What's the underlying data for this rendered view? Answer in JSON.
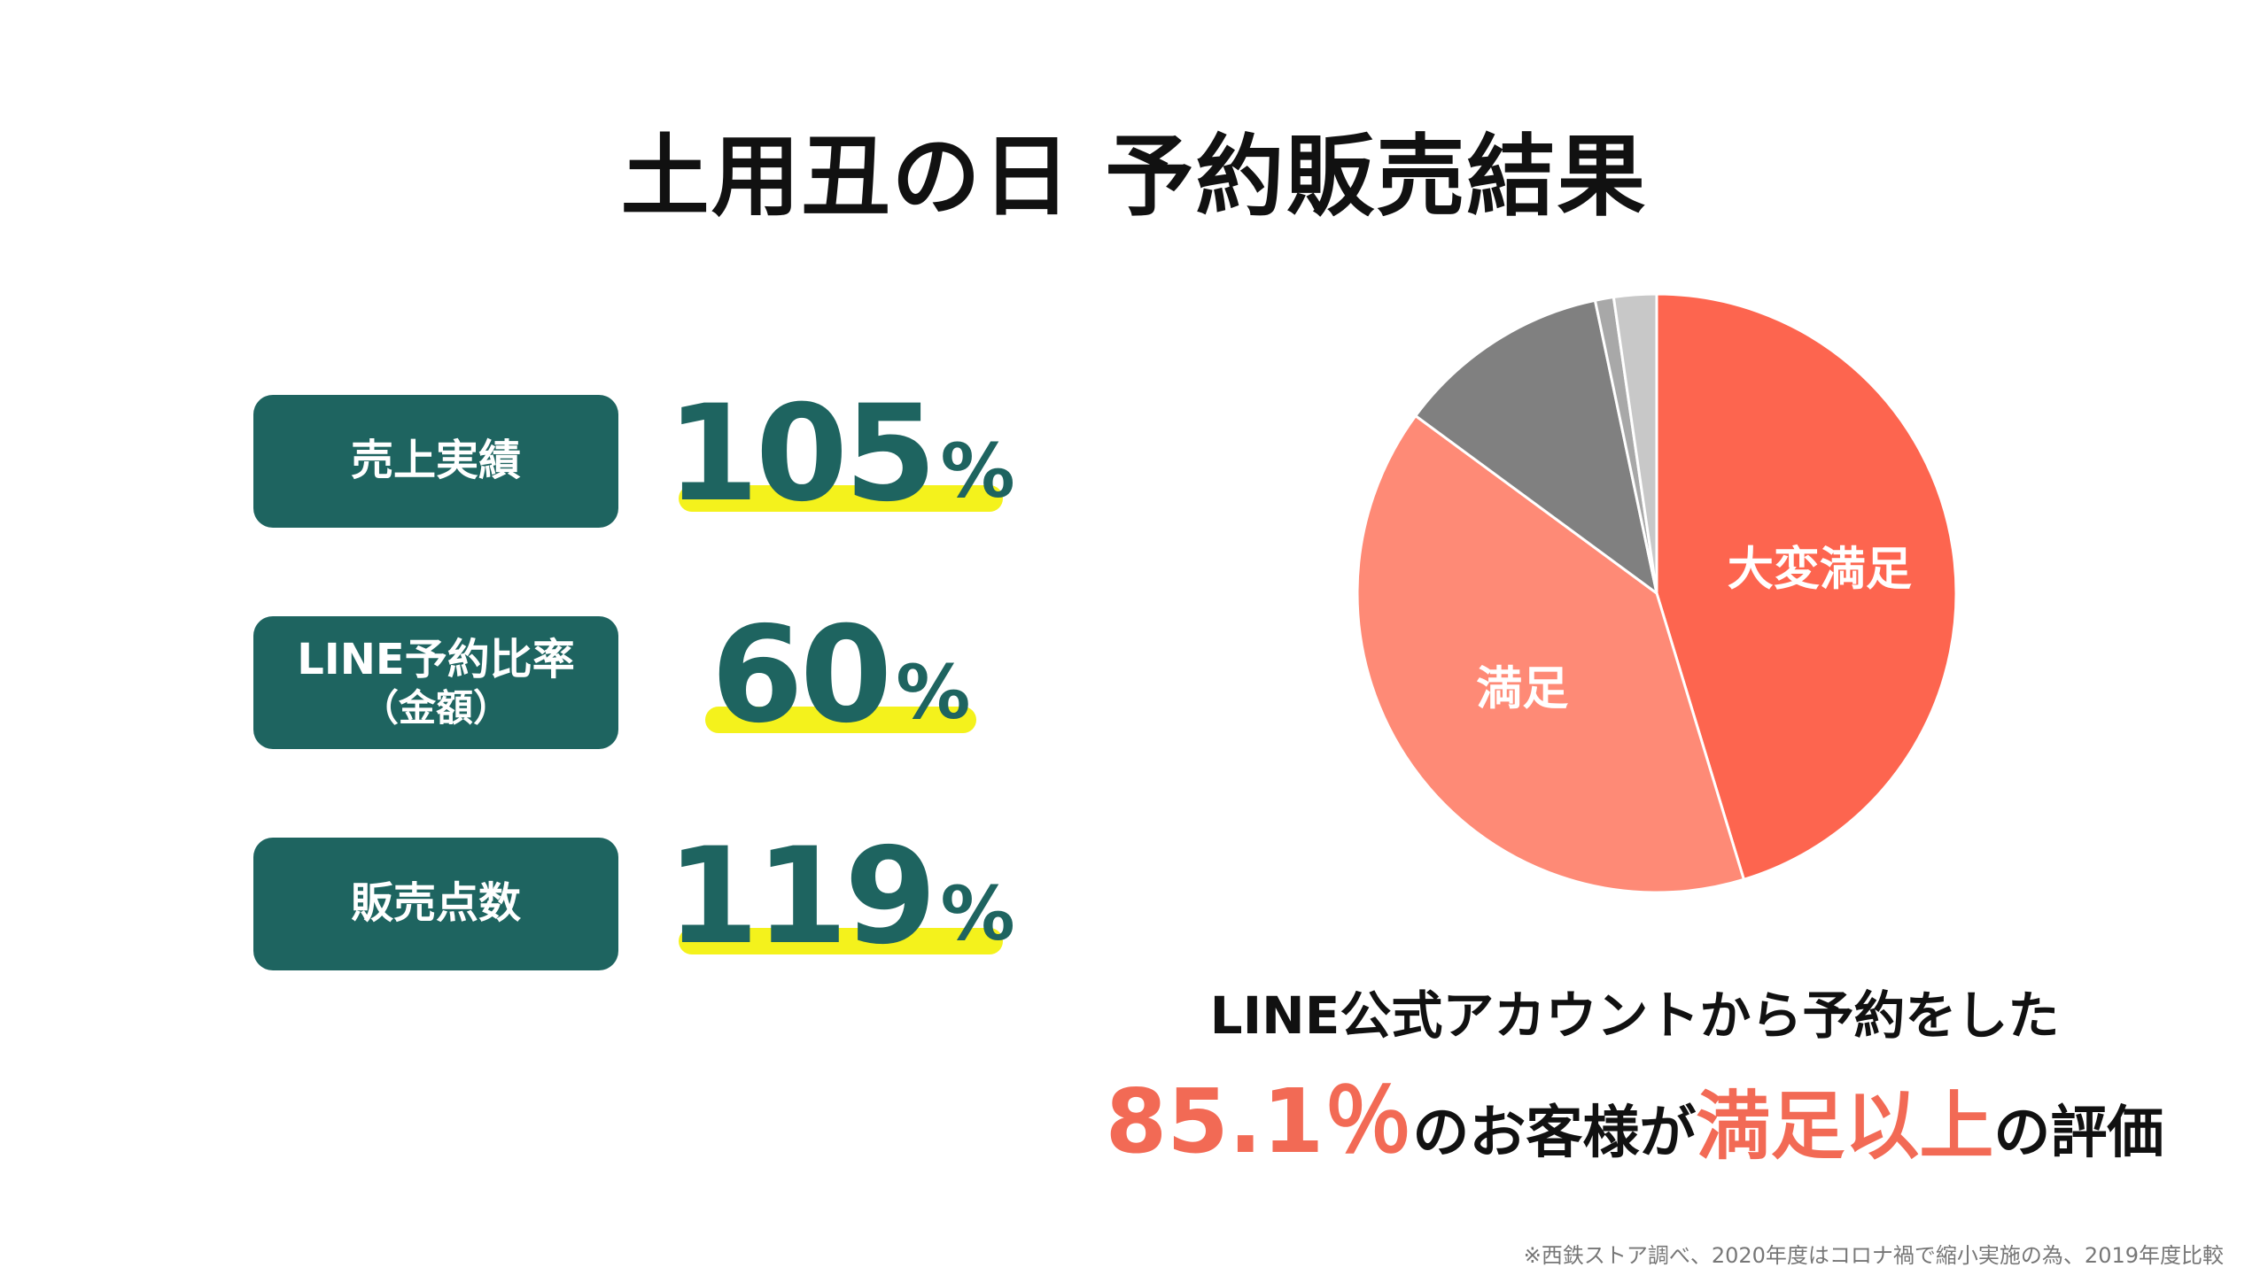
{
  "title": "土用丑の日 予約販売結果",
  "kpis": [
    {
      "label": "売上実績",
      "sub": "",
      "value": "105",
      "unit": "%"
    },
    {
      "label": "LINE予約比率",
      "sub": "（金額）",
      "value": "60",
      "unit": "%"
    },
    {
      "label": "販売点数",
      "sub": "",
      "value": "119",
      "unit": "%"
    }
  ],
  "colors": {
    "label_bg": "#1e6460",
    "value_text": "#1e6460",
    "highlight": "#f4f21c",
    "accent": "#f26a55"
  },
  "chart_data": {
    "type": "pie",
    "slices": [
      {
        "label": "大変満足",
        "value": 45.3,
        "color": "#fd654f"
      },
      {
        "label": "満足",
        "value": 39.8,
        "color": "#fe8a76"
      },
      {
        "label": "",
        "value": 11.6,
        "color": "#808080"
      },
      {
        "label": "",
        "value": 1.0,
        "color": "#a8a8a8"
      },
      {
        "label": "",
        "value": 2.3,
        "color": "#c8c8c8"
      }
    ]
  },
  "caption": {
    "line1": "LINE公式アカウントから予約をした",
    "percent": "85.1％",
    "middle": "のお客様が",
    "emphasis": "満足以上",
    "end": "の評価"
  },
  "footnote": "※西鉄ストア調べ、2020年度はコロナ禍で縮小実施の為、2019年度比較"
}
